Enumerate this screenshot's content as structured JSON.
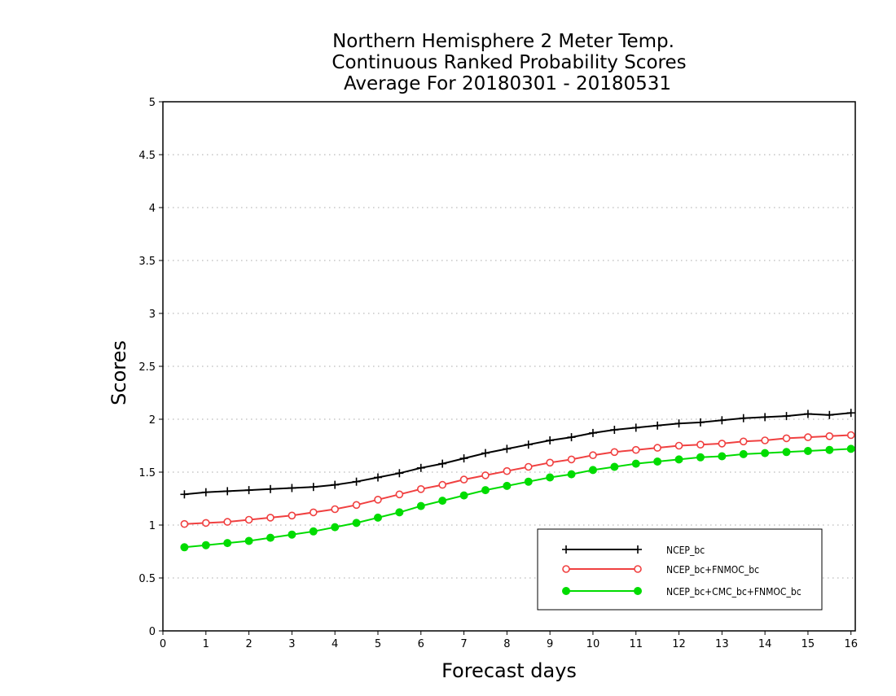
{
  "chart_data": {
    "type": "line",
    "title_lines": [
      "Northern Hemisphere 2 Meter Temp.",
      "Continuous Ranked Probability Scores",
      "Average For 20180301 - 20180531"
    ],
    "xlabel": "Forecast days",
    "ylabel": "Scores",
    "xlim": [
      0,
      16.1
    ],
    "ylim": [
      0,
      5
    ],
    "xticks": [
      0,
      1,
      2,
      3,
      4,
      5,
      6,
      7,
      8,
      9,
      10,
      11,
      12,
      13,
      14,
      15,
      16
    ],
    "yticks": [
      0,
      0.5,
      1,
      1.5,
      2,
      2.5,
      3,
      3.5,
      4,
      4.5,
      5
    ],
    "ytick_labels": [
      "0",
      "0.5",
      "1",
      "1.5",
      "2",
      "2.5",
      "3",
      "3.5",
      "4",
      "4.5",
      "5"
    ],
    "grid": "horizontal dotted",
    "legend_position": "bottom-right",
    "x": [
      0.5,
      1.0,
      1.5,
      2.0,
      2.5,
      3.0,
      3.5,
      4.0,
      4.5,
      5.0,
      5.5,
      6.0,
      6.5,
      7.0,
      7.5,
      8.0,
      8.5,
      9.0,
      9.5,
      10.0,
      10.5,
      11.0,
      11.5,
      12.0,
      12.5,
      13.0,
      13.5,
      14.0,
      14.5,
      15.0,
      15.5,
      16.0
    ],
    "series": [
      {
        "name": "NCEP_bc",
        "color": "#000000",
        "marker": "plus",
        "values": [
          1.29,
          1.31,
          1.32,
          1.33,
          1.34,
          1.35,
          1.36,
          1.38,
          1.41,
          1.45,
          1.49,
          1.54,
          1.58,
          1.63,
          1.68,
          1.72,
          1.76,
          1.8,
          1.83,
          1.87,
          1.9,
          1.92,
          1.94,
          1.96,
          1.97,
          1.99,
          2.01,
          2.02,
          2.03,
          2.05,
          2.04,
          2.06
        ]
      },
      {
        "name": "NCEP_bc+FNMOC_bc",
        "color": "#f04040",
        "marker": "open-circle",
        "values": [
          1.01,
          1.02,
          1.03,
          1.05,
          1.07,
          1.09,
          1.12,
          1.15,
          1.19,
          1.24,
          1.29,
          1.34,
          1.38,
          1.43,
          1.47,
          1.51,
          1.55,
          1.59,
          1.62,
          1.66,
          1.69,
          1.71,
          1.73,
          1.75,
          1.76,
          1.77,
          1.79,
          1.8,
          1.82,
          1.83,
          1.84,
          1.85
        ]
      },
      {
        "name": "NCEP_bc+CMC_bc+FNMOC_bc",
        "color": "#00dc00",
        "marker": "filled-circle",
        "values": [
          0.79,
          0.81,
          0.83,
          0.85,
          0.88,
          0.91,
          0.94,
          0.98,
          1.02,
          1.07,
          1.12,
          1.18,
          1.23,
          1.28,
          1.33,
          1.37,
          1.41,
          1.45,
          1.48,
          1.52,
          1.55,
          1.58,
          1.6,
          1.62,
          1.64,
          1.65,
          1.67,
          1.68,
          1.69,
          1.7,
          1.71,
          1.72
        ]
      }
    ]
  }
}
